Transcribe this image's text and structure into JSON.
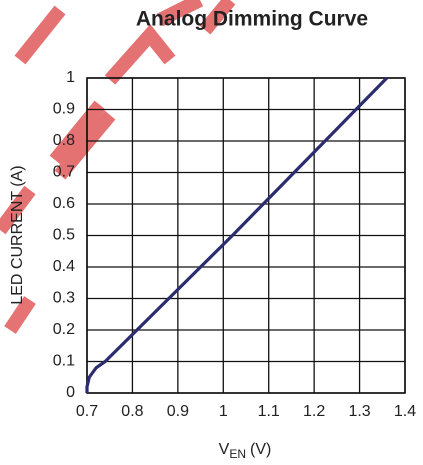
{
  "chart_data": {
    "type": "line",
    "title": "Analog Dimming Curve",
    "xlabel": {
      "main": "V",
      "sub": "EN",
      "unit": "(V)"
    },
    "ylabel": "LED CURRENT (A)",
    "series": [
      {
        "color": "#2b2d6e",
        "x": [
          0.7,
          0.7,
          0.705,
          0.72,
          0.74,
          1.02,
          1.36
        ],
        "values": [
          0,
          0.02,
          0.05,
          0.08,
          0.1,
          0.5,
          1.0
        ]
      }
    ],
    "xlim": [
      0.7,
      1.4
    ],
    "xticks": [
      0.7,
      0.8,
      0.9,
      1,
      1.1,
      1.2,
      1.3,
      1.4
    ],
    "ylim": [
      0,
      1
    ],
    "yticks": [
      0,
      0.1,
      0.2,
      0.3,
      0.4,
      0.5,
      0.6,
      0.7,
      0.8,
      0.9,
      1
    ],
    "grid": true
  }
}
